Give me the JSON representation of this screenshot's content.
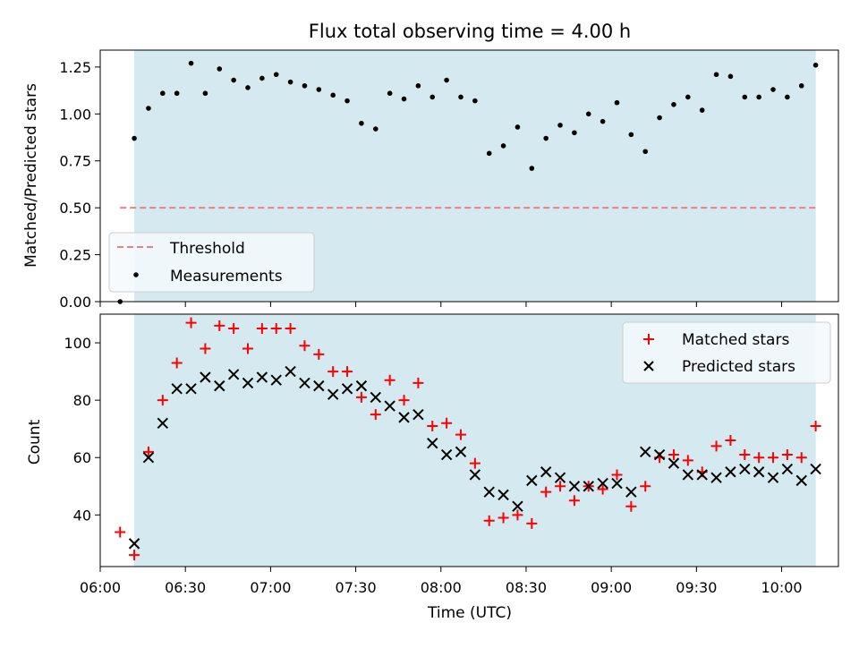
{
  "chart_data": {
    "type": "scatter",
    "title": "Flux total observing time = 4.00 h",
    "xlabel": "Time (UTC)",
    "x_tick_labels": [
      "06:00",
      "06:30",
      "07:00",
      "07:30",
      "08:00",
      "08:30",
      "09:00",
      "09:30",
      "10:00"
    ],
    "xlim": [
      "06:00",
      "10:20"
    ],
    "shaded_interval": [
      "06:12",
      "10:12"
    ],
    "colors": {
      "shade": "#d4eaf0",
      "threshold": "#f08080",
      "matched": "#ff0000",
      "predicted": "#000000",
      "measurements": "#000000"
    },
    "top_panel": {
      "ylabel": "Matched/Predicted stars",
      "ylim": [
        0,
        1.34
      ],
      "y_ticks": [
        "0.00",
        "0.25",
        "0.50",
        "0.75",
        "1.00",
        "1.25"
      ],
      "legend_position": "lower-left",
      "series": [
        {
          "name": "Threshold",
          "style": "dashed-line",
          "x": [
            "06:07",
            "10:12"
          ],
          "y": [
            0.5,
            0.5
          ]
        },
        {
          "name": "Measurements",
          "style": "dot",
          "x": [
            "06:07",
            "06:12",
            "06:17",
            "06:22",
            "06:27",
            "06:32",
            "06:37",
            "06:42",
            "06:47",
            "06:52",
            "06:57",
            "07:02",
            "07:07",
            "07:12",
            "07:17",
            "07:22",
            "07:27",
            "07:32",
            "07:37",
            "07:42",
            "07:47",
            "07:52",
            "07:57",
            "08:02",
            "08:07",
            "08:12",
            "08:17",
            "08:22",
            "08:27",
            "08:32",
            "08:37",
            "08:42",
            "08:47",
            "08:52",
            "08:57",
            "09:02",
            "09:07",
            "09:12",
            "09:17",
            "09:22",
            "09:27",
            "09:32",
            "09:37",
            "09:42",
            "09:47",
            "09:52",
            "09:57",
            "10:02",
            "10:07",
            "10:12"
          ],
          "y": [
            0.0,
            0.87,
            1.03,
            1.11,
            1.11,
            1.27,
            1.11,
            1.24,
            1.18,
            1.14,
            1.19,
            1.21,
            1.17,
            1.15,
            1.13,
            1.1,
            1.07,
            0.95,
            0.92,
            1.11,
            1.08,
            1.15,
            1.09,
            1.18,
            1.09,
            1.07,
            0.79,
            0.83,
            0.93,
            0.71,
            0.87,
            0.94,
            0.9,
            1.0,
            0.96,
            1.06,
            0.89,
            0.8,
            0.98,
            1.05,
            1.09,
            1.02,
            1.21,
            1.2,
            1.09,
            1.09,
            1.13,
            1.09,
            1.15,
            1.26
          ]
        }
      ]
    },
    "bottom_panel": {
      "ylabel": "Count",
      "ylim": [
        22,
        110
      ],
      "y_ticks": [
        "40",
        "60",
        "80",
        "100"
      ],
      "legend_position": "top-right",
      "series": [
        {
          "name": "Matched stars",
          "style": "plus",
          "x": [
            "06:07",
            "06:12",
            "06:17",
            "06:22",
            "06:27",
            "06:32",
            "06:37",
            "06:42",
            "06:47",
            "06:52",
            "06:57",
            "07:02",
            "07:07",
            "07:12",
            "07:17",
            "07:22",
            "07:27",
            "07:32",
            "07:37",
            "07:42",
            "07:47",
            "07:52",
            "07:57",
            "08:02",
            "08:07",
            "08:12",
            "08:17",
            "08:22",
            "08:27",
            "08:32",
            "08:37",
            "08:42",
            "08:47",
            "08:52",
            "08:57",
            "09:02",
            "09:07",
            "09:12",
            "09:17",
            "09:22",
            "09:27",
            "09:32",
            "09:37",
            "09:42",
            "09:47",
            "09:52",
            "09:57",
            "10:02",
            "10:07",
            "10:12"
          ],
          "y": [
            34,
            26,
            62,
            80,
            93,
            107,
            98,
            106,
            105,
            98,
            105,
            105,
            105,
            99,
            96,
            90,
            90,
            81,
            75,
            87,
            80,
            86,
            71,
            72,
            68,
            58,
            38,
            39,
            40,
            37,
            48,
            50,
            45,
            50,
            49,
            54,
            43,
            50,
            60,
            61,
            59,
            55,
            64,
            66,
            61,
            60,
            60,
            61,
            60,
            71
          ]
        },
        {
          "name": "Predicted stars",
          "style": "x",
          "x": [
            "06:12",
            "06:17",
            "06:22",
            "06:27",
            "06:32",
            "06:37",
            "06:42",
            "06:47",
            "06:52",
            "06:57",
            "07:02",
            "07:07",
            "07:12",
            "07:17",
            "07:22",
            "07:27",
            "07:32",
            "07:37",
            "07:42",
            "07:47",
            "07:52",
            "07:57",
            "08:02",
            "08:07",
            "08:12",
            "08:17",
            "08:22",
            "08:27",
            "08:32",
            "08:37",
            "08:42",
            "08:47",
            "08:52",
            "08:57",
            "09:02",
            "09:07",
            "09:12",
            "09:17",
            "09:22",
            "09:27",
            "09:32",
            "09:37",
            "09:42",
            "09:47",
            "09:52",
            "09:57",
            "10:02",
            "10:07",
            "10:12"
          ],
          "y": [
            30,
            60,
            72,
            84,
            84,
            88,
            85,
            89,
            86,
            88,
            87,
            90,
            86,
            85,
            82,
            84,
            85,
            81,
            78,
            74,
            75,
            65,
            61,
            62,
            54,
            48,
            47,
            43,
            52,
            55,
            53,
            50,
            50,
            51,
            51,
            48,
            62,
            61,
            58,
            54,
            54,
            53,
            55,
            56,
            55,
            53,
            56,
            52,
            56
          ]
        }
      ]
    }
  }
}
